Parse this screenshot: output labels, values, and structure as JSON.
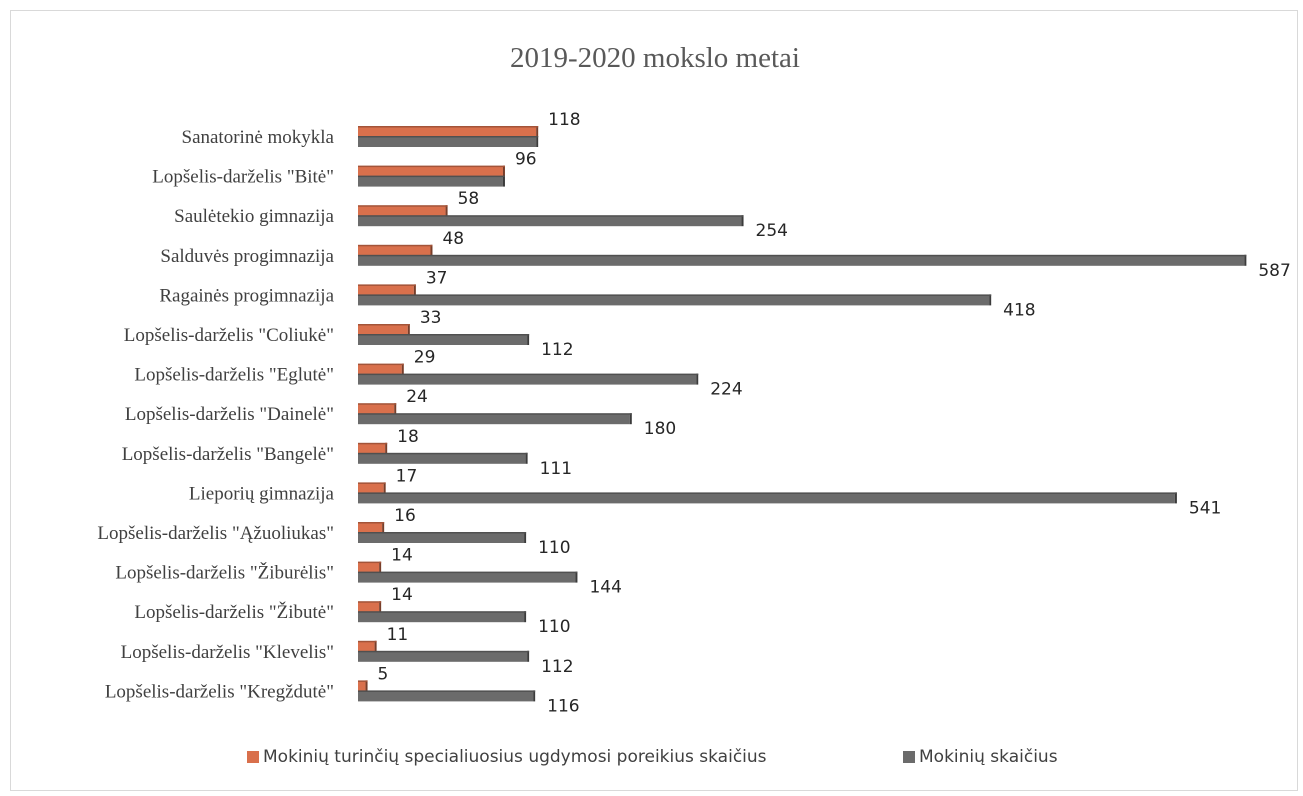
{
  "chart_data": {
    "type": "bar",
    "orientation": "horizontal",
    "title": "2019-2020 mokslo metai",
    "xlabel": "",
    "ylabel": "",
    "xlim": [
      0,
      600
    ],
    "grid": false,
    "legend_position": "bottom",
    "categories": [
      "Sanatorinė mokykla",
      "Lopšelis-darželis \"Bitė\"",
      "Saulėtekio gimnazija",
      "Salduvės progimnazija",
      "Ragainės progimnazija",
      "Lopšelis-darželis \"Coliukė\"",
      "Lopšelis-darželis \"Eglutė\"",
      "Lopšelis-darželis \"Dainelė\"",
      "Lopšelis-darželis \"Bangelė\"",
      "Lieporių gimnazija",
      "Lopšelis-darželis \"Ąžuoliukas\"",
      "Lopšelis-darželis \"Žiburėlis\"",
      "Lopšelis-darželis \"Žibutė\"",
      "Lopšelis-darželis \"Klevelis\"",
      "Lopšelis-darželis \"Kregždutė\""
    ],
    "series": [
      {
        "name": "Mokinių turinčių specialiuosius ugdymosi poreikius skaičius",
        "color": "#d9704c",
        "values": [
          118,
          96,
          58,
          48,
          37,
          33,
          29,
          24,
          18,
          17,
          16,
          14,
          14,
          11,
          5
        ],
        "show_labels": [
          true,
          true,
          true,
          true,
          true,
          true,
          true,
          true,
          true,
          true,
          true,
          true,
          true,
          true,
          true
        ]
      },
      {
        "name": "Mokinių skaičius",
        "color": "#6b6b6b",
        "values": [
          118,
          96,
          254,
          587,
          418,
          112,
          224,
          180,
          111,
          541,
          110,
          144,
          110,
          112,
          116
        ],
        "show_labels": [
          false,
          false,
          true,
          true,
          true,
          true,
          true,
          true,
          true,
          true,
          true,
          true,
          true,
          true,
          true
        ]
      }
    ]
  }
}
